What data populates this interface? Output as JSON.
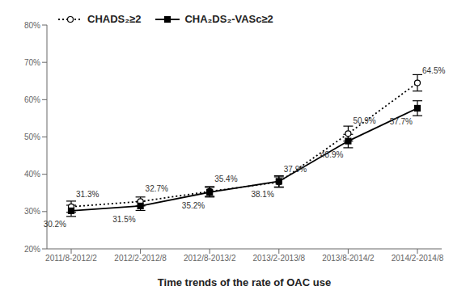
{
  "chart_data": {
    "type": "line",
    "xlabel": "Time trends of the rate of OAC use",
    "categories": [
      "2011/8-2012/2",
      "2012/2-2012/8",
      "2012/8-2013/2",
      "2013/2-2013/8",
      "2013/8-2014/2",
      "2014/2-2014/8"
    ],
    "series": [
      {
        "name": "CHADS₂≥2",
        "color": "#000000",
        "marker": "open_circle",
        "line_style": "dotted",
        "values": [
          31.3,
          32.7,
          35.4,
          37.9,
          50.9,
          64.5
        ],
        "errors": [
          1.5,
          1.2,
          1.3,
          1.4,
          2.0,
          2.2
        ],
        "value_labels": [
          "31.3%",
          "32.7%",
          "35.4%",
          "37.9%",
          "50.9%",
          "64.5%"
        ]
      },
      {
        "name": "CHA₂DS₂-VASc≥2",
        "color": "#000000",
        "marker": "square",
        "line_style": "solid",
        "values": [
          30.2,
          31.5,
          35.2,
          38.1,
          48.9,
          57.7
        ],
        "errors": [
          1.5,
          1.2,
          1.3,
          1.5,
          1.8,
          2.0
        ],
        "value_labels": [
          "30.2%",
          "31.5%",
          "35.2%",
          "38.1%",
          "48.9%",
          "57.7%"
        ]
      }
    ],
    "ylim": [
      20,
      80
    ],
    "yticks": [
      {
        "value": 20,
        "label": "20%"
      },
      {
        "value": 30,
        "label": "30%"
      },
      {
        "value": 40,
        "label": "40%"
      },
      {
        "value": 50,
        "label": "50%"
      },
      {
        "value": 60,
        "label": "60%"
      },
      {
        "value": 70,
        "label": "70%"
      },
      {
        "value": 80,
        "label": "80%"
      }
    ],
    "data_labels": true,
    "legend": "upper left",
    "grid": false
  }
}
